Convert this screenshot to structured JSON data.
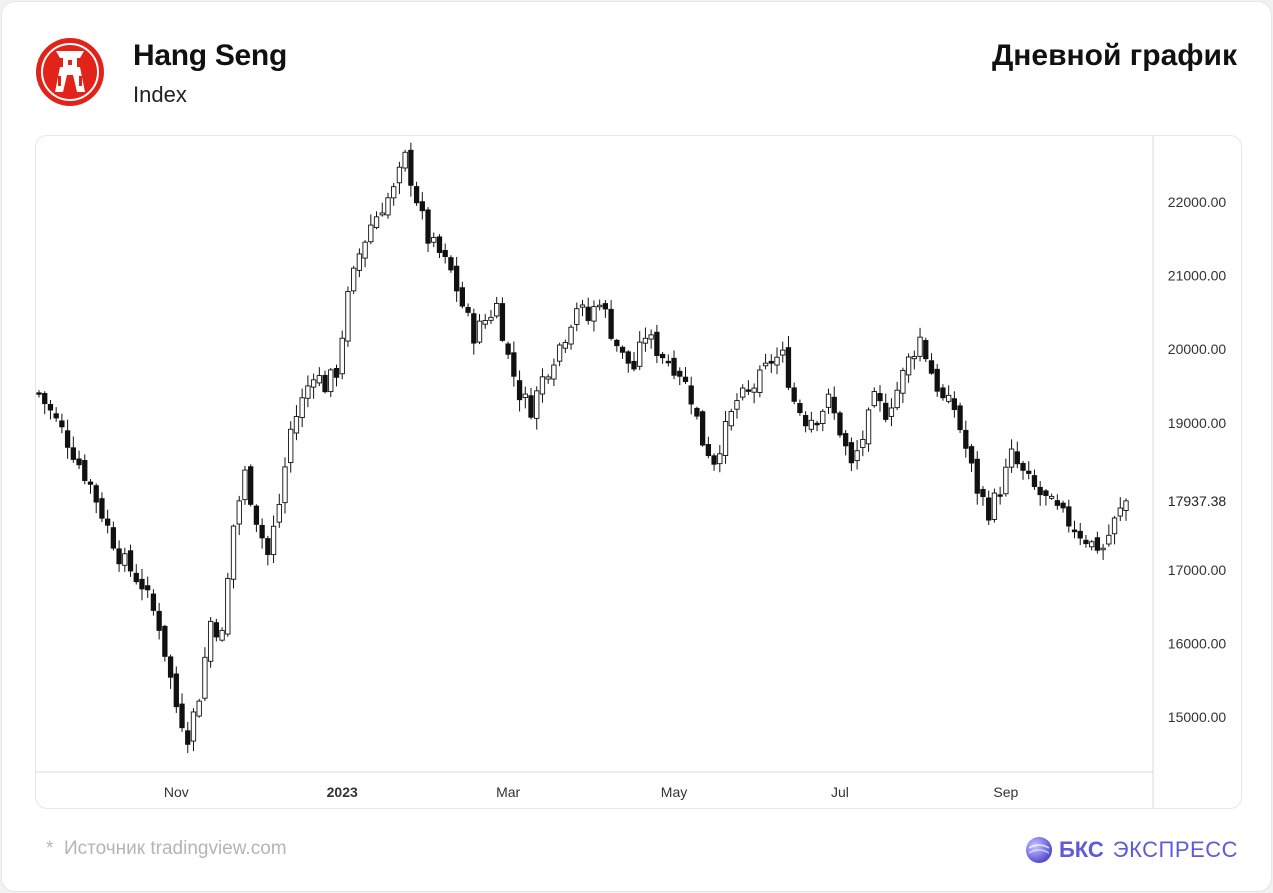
{
  "header": {
    "title": "Hang Seng",
    "subtitle": "Index",
    "chart_kind": "Дневной график",
    "logo_icon": "hang-seng-logo-icon",
    "logo_color": "#e2231a"
  },
  "footer": {
    "source_star": "*",
    "source_text": "Источник tradingview.com",
    "brand_icon": "bks-sphere-icon",
    "brand_name": "БКС",
    "brand_sub": "ЭКСПРЕСС",
    "brand_color": "#5e5ad8"
  },
  "chart_data": {
    "type": "candlestick",
    "title": "",
    "xlabel": "",
    "ylabel": "",
    "ylim": [
      14250,
      22900
    ],
    "y_ticks": [
      "15000.00",
      "16000.00",
      "17000.00",
      "19000.00",
      "20000.00",
      "21000.00",
      "22000.00"
    ],
    "y_tick_values": [
      15000,
      16000,
      17000,
      19000,
      20000,
      21000,
      22000
    ],
    "last_price_label": "17937.38",
    "last_price": 17937.38,
    "x_labels": [
      "Nov",
      "2023",
      "Mar",
      "May",
      "Jul",
      "Sep"
    ],
    "x_label_index": [
      24,
      53,
      82,
      111,
      140,
      169
    ],
    "up_color": "#ffffff",
    "down_color": "#111111",
    "approx_close_path": [
      [
        0,
        19400
      ],
      [
        4,
        18900
      ],
      [
        9,
        18150
      ],
      [
        14,
        17200
      ],
      [
        18,
        16800
      ],
      [
        21,
        16250
      ],
      [
        24,
        15150
      ],
      [
        26,
        14750
      ],
      [
        28,
        15300
      ],
      [
        30,
        16300
      ],
      [
        32,
        16100
      ],
      [
        34,
        17600
      ],
      [
        36,
        18300
      ],
      [
        38,
        17700
      ],
      [
        40,
        17200
      ],
      [
        42,
        17900
      ],
      [
        44,
        18900
      ],
      [
        46,
        19300
      ],
      [
        48,
        19700
      ],
      [
        50,
        19500
      ],
      [
        52,
        19700
      ],
      [
        54,
        20700
      ],
      [
        56,
        21300
      ],
      [
        58,
        21700
      ],
      [
        60,
        21950
      ],
      [
        62,
        22150
      ],
      [
        64,
        22600
      ],
      [
        66,
        22050
      ],
      [
        68,
        21500
      ],
      [
        70,
        21300
      ],
      [
        72,
        21050
      ],
      [
        74,
        20600
      ],
      [
        76,
        20200
      ],
      [
        78,
        20400
      ],
      [
        80,
        20600
      ],
      [
        82,
        19900
      ],
      [
        84,
        19400
      ],
      [
        86,
        19200
      ],
      [
        88,
        19600
      ],
      [
        90,
        19900
      ],
      [
        92,
        20200
      ],
      [
        94,
        20600
      ],
      [
        96,
        20400
      ],
      [
        98,
        20700
      ],
      [
        100,
        20250
      ],
      [
        102,
        19900
      ],
      [
        104,
        19750
      ],
      [
        106,
        20200
      ],
      [
        108,
        20000
      ],
      [
        110,
        19850
      ],
      [
        112,
        19700
      ],
      [
        114,
        19350
      ],
      [
        116,
        18750
      ],
      [
        118,
        18500
      ],
      [
        120,
        18900
      ],
      [
        122,
        19300
      ],
      [
        124,
        19400
      ],
      [
        126,
        19600
      ],
      [
        128,
        19850
      ],
      [
        130,
        19900
      ],
      [
        132,
        19300
      ],
      [
        134,
        19050
      ],
      [
        136,
        19100
      ],
      [
        138,
        19300
      ],
      [
        140,
        18900
      ],
      [
        142,
        18400
      ],
      [
        144,
        18800
      ],
      [
        146,
        19300
      ],
      [
        148,
        19150
      ],
      [
        150,
        19450
      ],
      [
        152,
        19850
      ],
      [
        154,
        20150
      ],
      [
        156,
        19700
      ],
      [
        158,
        19300
      ],
      [
        160,
        19200
      ],
      [
        162,
        18650
      ],
      [
        164,
        18100
      ],
      [
        166,
        17800
      ],
      [
        168,
        18100
      ],
      [
        170,
        18550
      ],
      [
        172,
        18300
      ],
      [
        174,
        18100
      ],
      [
        176,
        17950
      ],
      [
        178,
        17800
      ],
      [
        180,
        17650
      ],
      [
        182,
        17500
      ],
      [
        184,
        17350
      ],
      [
        186,
        17300
      ],
      [
        188,
        17650
      ],
      [
        190,
        17937
      ]
    ]
  }
}
